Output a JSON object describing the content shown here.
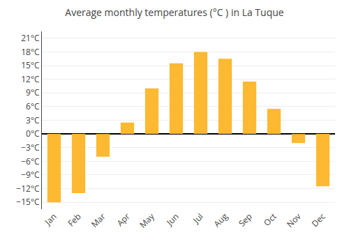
{
  "chart_data": {
    "type": "bar",
    "title": "Average monthly temperatures (°C ) in La Tuque",
    "categories": [
      "Jan",
      "Feb",
      "Mar",
      "Apr",
      "May",
      "Jun",
      "Jul",
      "Aug",
      "Sep",
      "Oct",
      "Nov",
      "Dec"
    ],
    "values": [
      -15,
      -13,
      -5,
      2.5,
      10,
      15.5,
      18,
      16.5,
      11.5,
      5.5,
      -2,
      -11.5
    ],
    "color": "#FDB931",
    "ylim": [
      -16.5,
      22.5
    ],
    "yticks": [
      {
        "value": -15,
        "label": "−15°C"
      },
      {
        "value": -12,
        "label": "−12°C"
      },
      {
        "value": -9,
        "label": "−9°C"
      },
      {
        "value": -6,
        "label": "−6°C"
      },
      {
        "value": -3,
        "label": "−3°C"
      },
      {
        "value": 0,
        "label": "0°C"
      },
      {
        "value": 3,
        "label": "3°C"
      },
      {
        "value": 6,
        "label": "6°C"
      },
      {
        "value": 9,
        "label": "9°C"
      },
      {
        "value": 12,
        "label": "12°C"
      },
      {
        "value": 15,
        "label": "15°C"
      },
      {
        "value": 18,
        "label": "18°C"
      },
      {
        "value": 21,
        "label": "21°C"
      }
    ],
    "grid": true
  }
}
